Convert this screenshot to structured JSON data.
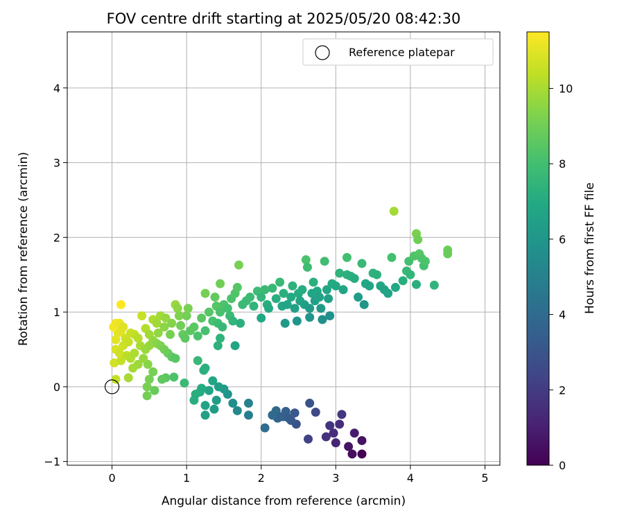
{
  "chart_data": {
    "type": "scatter",
    "title": "FOV centre drift starting at 2025/05/20 08:42:30",
    "xlabel": "Angular distance from reference (arcmin)",
    "ylabel": "Rotation from reference (arcmin)",
    "xlim": [
      -0.6,
      5.2
    ],
    "ylim": [
      -1.05,
      4.75
    ],
    "xticks": [
      0,
      1,
      2,
      3,
      4,
      5
    ],
    "yticks": [
      -1,
      0,
      1,
      2,
      3,
      4
    ],
    "grid": true,
    "legend": {
      "position": "top-right",
      "entries": [
        "Reference platepar"
      ]
    },
    "reference_point": {
      "x": 0,
      "y": 0,
      "label": "Reference platepar"
    },
    "colorbar": {
      "label": "Hours from first FF file",
      "min": 0,
      "max": 11.5,
      "ticks": [
        0,
        2,
        4,
        6,
        8,
        10
      ],
      "colormap": "viridis"
    },
    "series": [
      {
        "points": [
          [
            3.35,
            -0.9
          ],
          [
            3.22,
            -0.9
          ],
          [
            3.17,
            -0.8
          ],
          [
            3.35,
            -0.72
          ],
          [
            3.0,
            -0.75
          ],
          [
            3.25,
            -0.62
          ],
          [
            2.97,
            -0.62
          ],
          [
            2.87,
            -0.67
          ],
          [
            2.92,
            -0.52
          ],
          [
            3.05,
            -0.5
          ],
          [
            2.63,
            -0.7
          ],
          [
            3.08,
            -0.37
          ],
          [
            2.73,
            -0.34
          ],
          [
            2.65,
            -0.22
          ],
          [
            2.47,
            -0.5
          ],
          [
            2.4,
            -0.45
          ],
          [
            2.3,
            -0.4
          ],
          [
            2.45,
            -0.35
          ],
          [
            2.33,
            -0.33
          ],
          [
            2.22,
            -0.42
          ],
          [
            2.15,
            -0.38
          ],
          [
            2.2,
            -0.32
          ],
          [
            2.27,
            -0.4
          ],
          [
            2.05,
            -0.55
          ],
          [
            2.37,
            -0.42
          ],
          [
            1.83,
            -0.38
          ],
          [
            1.68,
            -0.32
          ],
          [
            1.83,
            -0.22
          ],
          [
            1.62,
            -0.22
          ],
          [
            1.55,
            -0.1
          ],
          [
            1.5,
            -0.03
          ],
          [
            1.43,
            0.0
          ],
          [
            1.4,
            -0.18
          ],
          [
            1.37,
            -0.3
          ],
          [
            1.35,
            0.08
          ],
          [
            1.3,
            -0.05
          ],
          [
            1.25,
            -0.38
          ],
          [
            1.25,
            -0.25
          ],
          [
            1.2,
            -0.02
          ],
          [
            1.18,
            -0.07
          ],
          [
            1.12,
            -0.1
          ],
          [
            1.1,
            -0.18
          ],
          [
            0.97,
            0.05
          ],
          [
            1.23,
            0.22
          ],
          [
            1.15,
            0.35
          ],
          [
            1.25,
            0.25
          ],
          [
            0.83,
            0.13
          ],
          [
            0.72,
            0.12
          ],
          [
            0.67,
            0.1
          ],
          [
            0.57,
            -0.05
          ],
          [
            0.47,
            -0.12
          ],
          [
            0.47,
            0.0
          ],
          [
            0.5,
            0.1
          ],
          [
            0.55,
            0.2
          ],
          [
            0.48,
            0.3
          ],
          [
            0.42,
            0.38
          ],
          [
            0.35,
            0.3
          ],
          [
            0.28,
            0.25
          ],
          [
            0.22,
            0.12
          ],
          [
            0.05,
            0.1
          ],
          [
            0.03,
            0.32
          ],
          [
            0.12,
            0.35
          ],
          [
            0.05,
            0.5
          ],
          [
            0.1,
            0.45
          ],
          [
            0.15,
            0.55
          ],
          [
            0.2,
            0.42
          ],
          [
            0.25,
            0.38
          ],
          [
            0.3,
            0.45
          ],
          [
            0.38,
            0.55
          ],
          [
            0.45,
            0.5
          ],
          [
            0.5,
            0.55
          ],
          [
            0.05,
            0.63
          ],
          [
            0.08,
            0.72
          ],
          [
            0.12,
            0.75
          ],
          [
            0.02,
            0.8
          ],
          [
            0.05,
            0.85
          ],
          [
            0.1,
            0.85
          ],
          [
            0.15,
            0.8
          ],
          [
            0.18,
            0.65
          ],
          [
            0.22,
            0.6
          ],
          [
            0.25,
            0.72
          ],
          [
            0.3,
            0.7
          ],
          [
            0.35,
            0.65
          ],
          [
            0.12,
            1.1
          ],
          [
            0.4,
            0.95
          ],
          [
            0.45,
            0.78
          ],
          [
            0.5,
            0.7
          ],
          [
            0.55,
            0.62
          ],
          [
            0.6,
            0.58
          ],
          [
            0.65,
            0.55
          ],
          [
            0.7,
            0.5
          ],
          [
            0.75,
            0.45
          ],
          [
            0.8,
            0.4
          ],
          [
            0.85,
            0.38
          ],
          [
            0.55,
            0.9
          ],
          [
            0.6,
            0.85
          ],
          [
            0.62,
            0.72
          ],
          [
            0.65,
            0.95
          ],
          [
            0.7,
            0.8
          ],
          [
            0.72,
            0.92
          ],
          [
            0.78,
            0.7
          ],
          [
            0.8,
            0.85
          ],
          [
            0.85,
            1.1
          ],
          [
            0.88,
            1.05
          ],
          [
            0.9,
            0.95
          ],
          [
            0.92,
            0.82
          ],
          [
            0.95,
            0.7
          ],
          [
            0.98,
            0.65
          ],
          [
            1.0,
            0.95
          ],
          [
            1.02,
            1.05
          ],
          [
            1.05,
            0.75
          ],
          [
            1.1,
            0.8
          ],
          [
            1.15,
            0.68
          ],
          [
            1.2,
            0.92
          ],
          [
            1.25,
            0.75
          ],
          [
            1.3,
            1.0
          ],
          [
            1.25,
            1.25
          ],
          [
            1.35,
            0.88
          ],
          [
            1.38,
            1.2
          ],
          [
            1.4,
            1.08
          ],
          [
            1.42,
            0.85
          ],
          [
            1.45,
            1.0
          ],
          [
            1.48,
            0.8
          ],
          [
            1.45,
            0.65
          ],
          [
            1.42,
            0.55
          ],
          [
            1.45,
            1.38
          ],
          [
            1.5,
            1.1
          ],
          [
            1.55,
            1.05
          ],
          [
            1.58,
            0.95
          ],
          [
            1.6,
            1.18
          ],
          [
            1.62,
            0.88
          ],
          [
            1.65,
            1.25
          ],
          [
            1.68,
            1.33
          ],
          [
            1.65,
            0.55
          ],
          [
            1.7,
            1.63
          ],
          [
            1.72,
            0.85
          ],
          [
            1.75,
            1.1
          ],
          [
            1.8,
            1.15
          ],
          [
            1.85,
            1.2
          ],
          [
            1.9,
            1.08
          ],
          [
            1.95,
            1.28
          ],
          [
            2.0,
            1.2
          ],
          [
            2.0,
            0.92
          ],
          [
            2.05,
            1.3
          ],
          [
            2.08,
            1.1
          ],
          [
            2.1,
            1.05
          ],
          [
            2.15,
            1.32
          ],
          [
            2.2,
            1.18
          ],
          [
            2.25,
            1.4
          ],
          [
            2.28,
            1.08
          ],
          [
            2.3,
            1.25
          ],
          [
            2.32,
            0.85
          ],
          [
            2.35,
            1.1
          ],
          [
            2.4,
            1.2
          ],
          [
            2.42,
            1.35
          ],
          [
            2.45,
            1.05
          ],
          [
            2.48,
            0.88
          ],
          [
            2.5,
            1.25
          ],
          [
            2.52,
            1.15
          ],
          [
            2.55,
            1.3
          ],
          [
            2.58,
            1.1
          ],
          [
            2.6,
            1.7
          ],
          [
            2.62,
            1.6
          ],
          [
            2.65,
            1.05
          ],
          [
            2.65,
            0.93
          ],
          [
            2.68,
            1.25
          ],
          [
            2.7,
            1.4
          ],
          [
            2.72,
            1.15
          ],
          [
            2.75,
            1.28
          ],
          [
            2.78,
            1.2
          ],
          [
            2.8,
            1.05
          ],
          [
            2.82,
            0.9
          ],
          [
            2.85,
            1.68
          ],
          [
            2.88,
            1.3
          ],
          [
            2.9,
            1.18
          ],
          [
            2.92,
            0.95
          ],
          [
            2.95,
            1.38
          ],
          [
            3.0,
            1.35
          ],
          [
            3.05,
            1.52
          ],
          [
            3.1,
            1.3
          ],
          [
            3.15,
            1.5
          ],
          [
            3.15,
            1.73
          ],
          [
            3.2,
            1.48
          ],
          [
            3.25,
            1.45
          ],
          [
            3.3,
            1.2
          ],
          [
            3.35,
            1.65
          ],
          [
            3.38,
            1.1
          ],
          [
            3.4,
            1.38
          ],
          [
            3.45,
            1.35
          ],
          [
            3.5,
            1.52
          ],
          [
            3.55,
            1.5
          ],
          [
            3.6,
            1.35
          ],
          [
            3.65,
            1.3
          ],
          [
            3.7,
            1.25
          ],
          [
            3.75,
            1.73
          ],
          [
            3.78,
            2.35
          ],
          [
            3.8,
            1.33
          ],
          [
            3.9,
            1.42
          ],
          [
            3.95,
            1.55
          ],
          [
            3.98,
            1.68
          ],
          [
            4.0,
            1.5
          ],
          [
            4.05,
            1.75
          ],
          [
            4.08,
            2.05
          ],
          [
            4.1,
            1.97
          ],
          [
            4.12,
            1.78
          ],
          [
            4.15,
            1.72
          ],
          [
            4.18,
            1.62
          ],
          [
            4.2,
            1.68
          ],
          [
            4.08,
            1.37
          ],
          [
            4.32,
            1.36
          ],
          [
            4.5,
            1.83
          ],
          [
            4.5,
            1.78
          ]
        ],
        "color_value_note": ""
      }
    ]
  }
}
